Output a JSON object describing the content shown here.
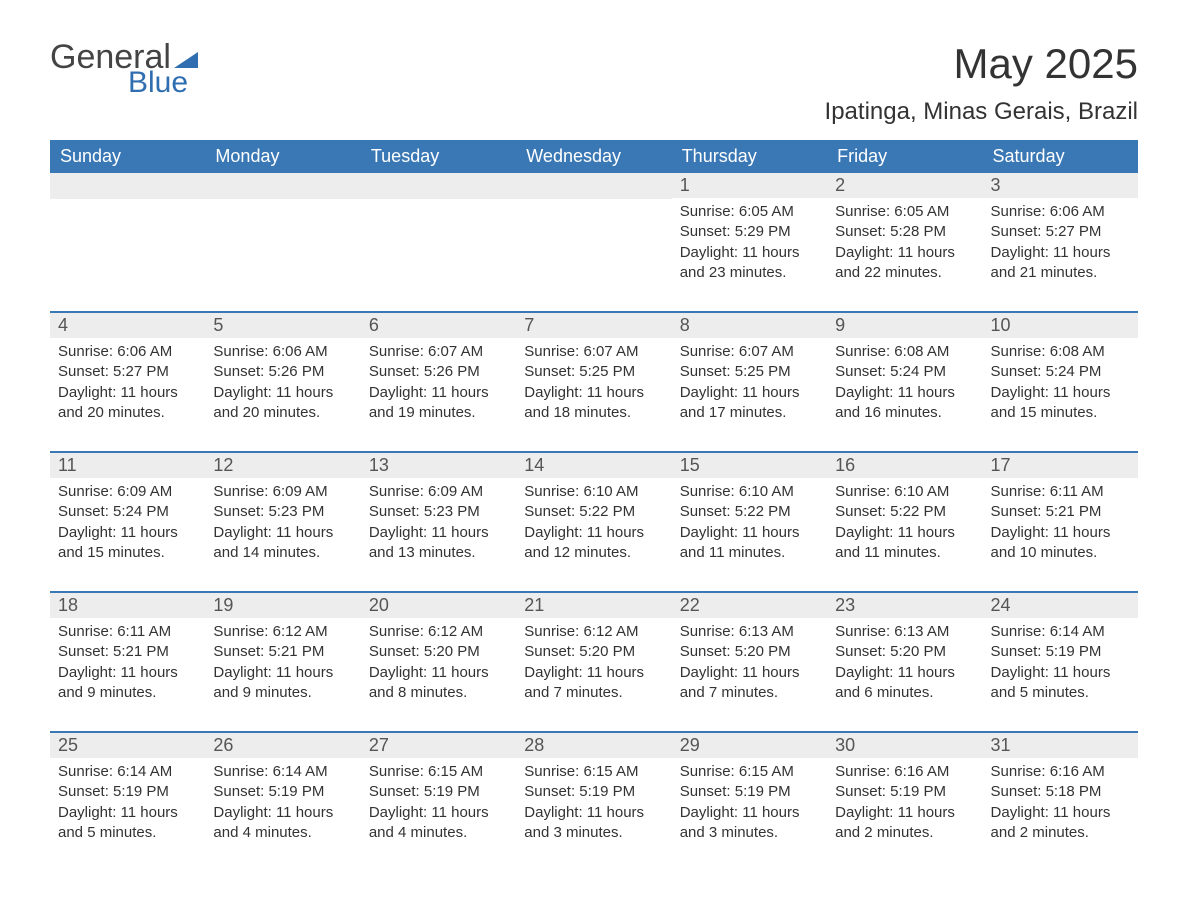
{
  "logo": {
    "text1": "General",
    "text2": "Blue"
  },
  "title": "May 2025",
  "location": "Ipatinga, Minas Gerais, Brazil",
  "colors": {
    "header_bg": "#3a78b5",
    "header_text": "#ffffff",
    "day_number_bg": "#ededed",
    "accent_blue": "#2f6eb0",
    "text": "#333333",
    "background": "#ffffff"
  },
  "weekdays": [
    "Sunday",
    "Monday",
    "Tuesday",
    "Wednesday",
    "Thursday",
    "Friday",
    "Saturday"
  ],
  "weeks": [
    [
      null,
      null,
      null,
      null,
      {
        "n": "1",
        "sunrise": "Sunrise: 6:05 AM",
        "sunset": "Sunset: 5:29 PM",
        "day1": "Daylight: 11 hours",
        "day2": "and 23 minutes."
      },
      {
        "n": "2",
        "sunrise": "Sunrise: 6:05 AM",
        "sunset": "Sunset: 5:28 PM",
        "day1": "Daylight: 11 hours",
        "day2": "and 22 minutes."
      },
      {
        "n": "3",
        "sunrise": "Sunrise: 6:06 AM",
        "sunset": "Sunset: 5:27 PM",
        "day1": "Daylight: 11 hours",
        "day2": "and 21 minutes."
      }
    ],
    [
      {
        "n": "4",
        "sunrise": "Sunrise: 6:06 AM",
        "sunset": "Sunset: 5:27 PM",
        "day1": "Daylight: 11 hours",
        "day2": "and 20 minutes."
      },
      {
        "n": "5",
        "sunrise": "Sunrise: 6:06 AM",
        "sunset": "Sunset: 5:26 PM",
        "day1": "Daylight: 11 hours",
        "day2": "and 20 minutes."
      },
      {
        "n": "6",
        "sunrise": "Sunrise: 6:07 AM",
        "sunset": "Sunset: 5:26 PM",
        "day1": "Daylight: 11 hours",
        "day2": "and 19 minutes."
      },
      {
        "n": "7",
        "sunrise": "Sunrise: 6:07 AM",
        "sunset": "Sunset: 5:25 PM",
        "day1": "Daylight: 11 hours",
        "day2": "and 18 minutes."
      },
      {
        "n": "8",
        "sunrise": "Sunrise: 6:07 AM",
        "sunset": "Sunset: 5:25 PM",
        "day1": "Daylight: 11 hours",
        "day2": "and 17 minutes."
      },
      {
        "n": "9",
        "sunrise": "Sunrise: 6:08 AM",
        "sunset": "Sunset: 5:24 PM",
        "day1": "Daylight: 11 hours",
        "day2": "and 16 minutes."
      },
      {
        "n": "10",
        "sunrise": "Sunrise: 6:08 AM",
        "sunset": "Sunset: 5:24 PM",
        "day1": "Daylight: 11 hours",
        "day2": "and 15 minutes."
      }
    ],
    [
      {
        "n": "11",
        "sunrise": "Sunrise: 6:09 AM",
        "sunset": "Sunset: 5:24 PM",
        "day1": "Daylight: 11 hours",
        "day2": "and 15 minutes."
      },
      {
        "n": "12",
        "sunrise": "Sunrise: 6:09 AM",
        "sunset": "Sunset: 5:23 PM",
        "day1": "Daylight: 11 hours",
        "day2": "and 14 minutes."
      },
      {
        "n": "13",
        "sunrise": "Sunrise: 6:09 AM",
        "sunset": "Sunset: 5:23 PM",
        "day1": "Daylight: 11 hours",
        "day2": "and 13 minutes."
      },
      {
        "n": "14",
        "sunrise": "Sunrise: 6:10 AM",
        "sunset": "Sunset: 5:22 PM",
        "day1": "Daylight: 11 hours",
        "day2": "and 12 minutes."
      },
      {
        "n": "15",
        "sunrise": "Sunrise: 6:10 AM",
        "sunset": "Sunset: 5:22 PM",
        "day1": "Daylight: 11 hours",
        "day2": "and 11 minutes."
      },
      {
        "n": "16",
        "sunrise": "Sunrise: 6:10 AM",
        "sunset": "Sunset: 5:22 PM",
        "day1": "Daylight: 11 hours",
        "day2": "and 11 minutes."
      },
      {
        "n": "17",
        "sunrise": "Sunrise: 6:11 AM",
        "sunset": "Sunset: 5:21 PM",
        "day1": "Daylight: 11 hours",
        "day2": "and 10 minutes."
      }
    ],
    [
      {
        "n": "18",
        "sunrise": "Sunrise: 6:11 AM",
        "sunset": "Sunset: 5:21 PM",
        "day1": "Daylight: 11 hours",
        "day2": "and 9 minutes."
      },
      {
        "n": "19",
        "sunrise": "Sunrise: 6:12 AM",
        "sunset": "Sunset: 5:21 PM",
        "day1": "Daylight: 11 hours",
        "day2": "and 9 minutes."
      },
      {
        "n": "20",
        "sunrise": "Sunrise: 6:12 AM",
        "sunset": "Sunset: 5:20 PM",
        "day1": "Daylight: 11 hours",
        "day2": "and 8 minutes."
      },
      {
        "n": "21",
        "sunrise": "Sunrise: 6:12 AM",
        "sunset": "Sunset: 5:20 PM",
        "day1": "Daylight: 11 hours",
        "day2": "and 7 minutes."
      },
      {
        "n": "22",
        "sunrise": "Sunrise: 6:13 AM",
        "sunset": "Sunset: 5:20 PM",
        "day1": "Daylight: 11 hours",
        "day2": "and 7 minutes."
      },
      {
        "n": "23",
        "sunrise": "Sunrise: 6:13 AM",
        "sunset": "Sunset: 5:20 PM",
        "day1": "Daylight: 11 hours",
        "day2": "and 6 minutes."
      },
      {
        "n": "24",
        "sunrise": "Sunrise: 6:14 AM",
        "sunset": "Sunset: 5:19 PM",
        "day1": "Daylight: 11 hours",
        "day2": "and 5 minutes."
      }
    ],
    [
      {
        "n": "25",
        "sunrise": "Sunrise: 6:14 AM",
        "sunset": "Sunset: 5:19 PM",
        "day1": "Daylight: 11 hours",
        "day2": "and 5 minutes."
      },
      {
        "n": "26",
        "sunrise": "Sunrise: 6:14 AM",
        "sunset": "Sunset: 5:19 PM",
        "day1": "Daylight: 11 hours",
        "day2": "and 4 minutes."
      },
      {
        "n": "27",
        "sunrise": "Sunrise: 6:15 AM",
        "sunset": "Sunset: 5:19 PM",
        "day1": "Daylight: 11 hours",
        "day2": "and 4 minutes."
      },
      {
        "n": "28",
        "sunrise": "Sunrise: 6:15 AM",
        "sunset": "Sunset: 5:19 PM",
        "day1": "Daylight: 11 hours",
        "day2": "and 3 minutes."
      },
      {
        "n": "29",
        "sunrise": "Sunrise: 6:15 AM",
        "sunset": "Sunset: 5:19 PM",
        "day1": "Daylight: 11 hours",
        "day2": "and 3 minutes."
      },
      {
        "n": "30",
        "sunrise": "Sunrise: 6:16 AM",
        "sunset": "Sunset: 5:19 PM",
        "day1": "Daylight: 11 hours",
        "day2": "and 2 minutes."
      },
      {
        "n": "31",
        "sunrise": "Sunrise: 6:16 AM",
        "sunset": "Sunset: 5:18 PM",
        "day1": "Daylight: 11 hours",
        "day2": "and 2 minutes."
      }
    ]
  ]
}
